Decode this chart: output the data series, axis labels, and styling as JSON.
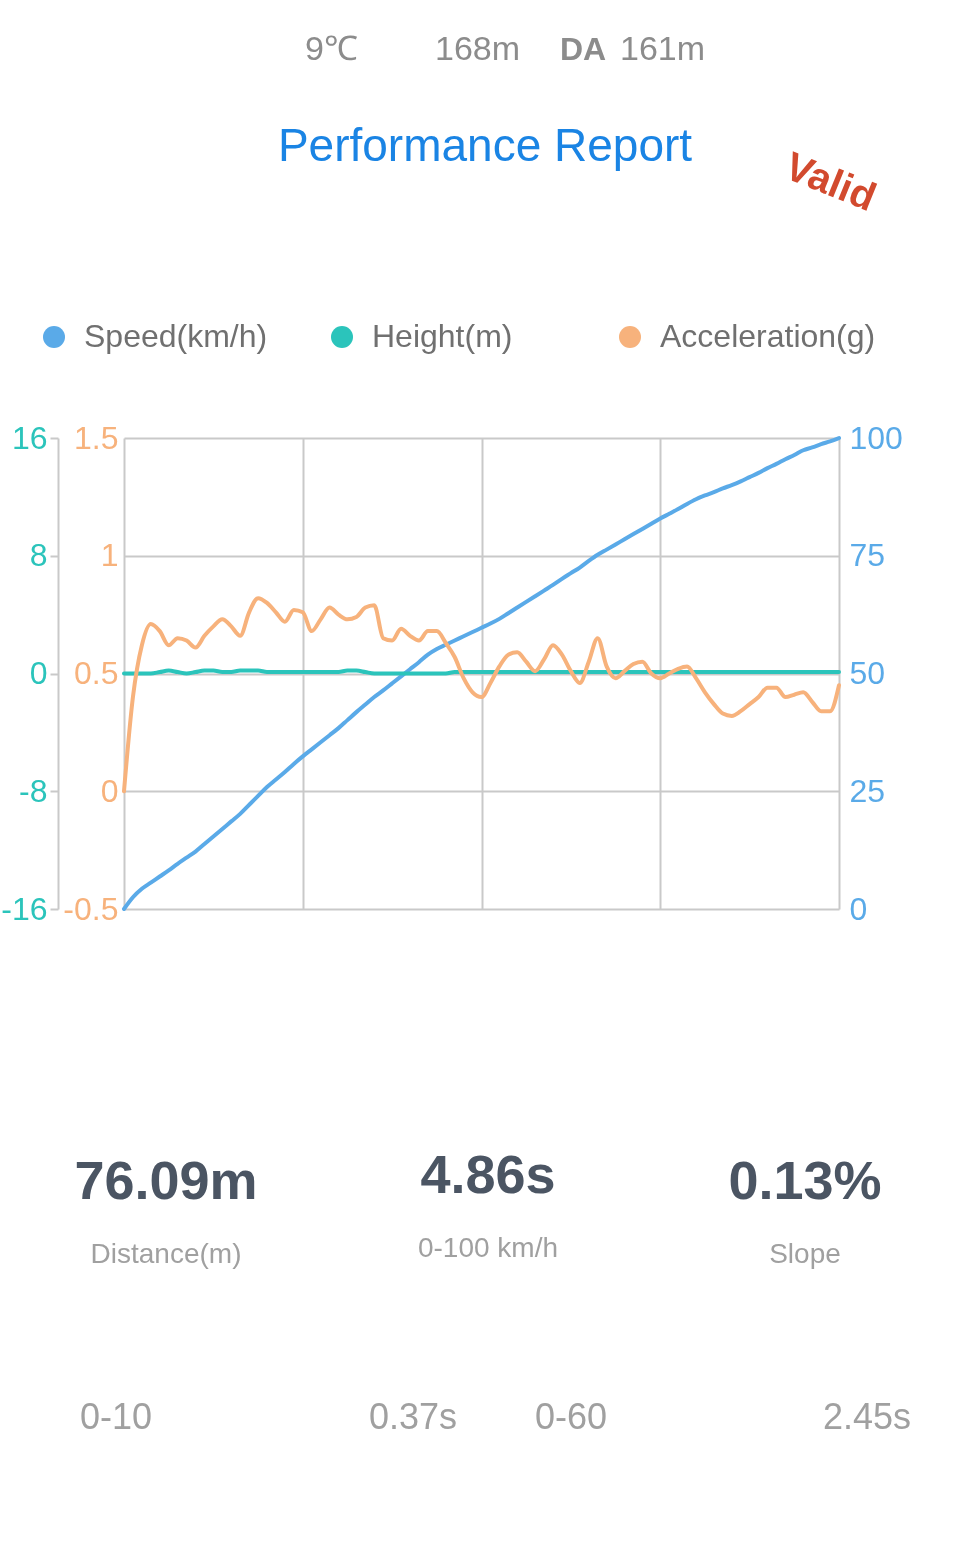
{
  "chart_data": {
    "type": "line",
    "title": "Performance Report",
    "annotations": [
      "9℃",
      "168m",
      "DA",
      "161m",
      "Valid",
      "76.09m",
      "Distance(m)",
      "4.86s",
      "0-100 km/h",
      "0.13%",
      "Slope",
      "0-10",
      "0.37s",
      "0-60",
      "2.45s"
    ],
    "categories": [
      null,
      null,
      null,
      null,
      null,
      null,
      null,
      null,
      null,
      null,
      null,
      null,
      null,
      null,
      null,
      null,
      null,
      null,
      null,
      null,
      null,
      null,
      null,
      null,
      null,
      null,
      null,
      null,
      null,
      null,
      null,
      null,
      null,
      null,
      null,
      null,
      null,
      null,
      null,
      null,
      null,
      null,
      null,
      null,
      null,
      null,
      null,
      null,
      null,
      null,
      null,
      null,
      null,
      null,
      null,
      null,
      null,
      null,
      null,
      null,
      null,
      null,
      null,
      null,
      null,
      null,
      null,
      null,
      null,
      null,
      null,
      null,
      null,
      null,
      null,
      null,
      null,
      null,
      null,
      null,
      null
    ],
    "series": [
      {
        "name": "Speed(km/h)",
        "color": "#5aaae8",
        "axis": "y2",
        "values": [
          0,
          2.5,
          4.3,
          5.6,
          6.9,
          8.2,
          9.6,
          10.9,
          12.2,
          13.8,
          15.4,
          17.0,
          18.6,
          20.2,
          22.1,
          24.0,
          25.9,
          27.5,
          29.1,
          30.8,
          32.4,
          33.9,
          35.4,
          36.9,
          38.4,
          40.1,
          41.8,
          43.4,
          45.0,
          46.4,
          47.9,
          49.4,
          50.9,
          52.4,
          54.0,
          55.2,
          56.1,
          57.0,
          57.9,
          58.8,
          59.7,
          60.6,
          61.6,
          62.8,
          64.0,
          65.2,
          66.4,
          67.6,
          68.8,
          70.1,
          71.3,
          72.5,
          73.9,
          75.2,
          76.3,
          77.4,
          78.5,
          79.6,
          80.7,
          81.8,
          82.9,
          83.9,
          84.9,
          86.0,
          87.0,
          87.8,
          88.5,
          89.3,
          90.0,
          90.8,
          91.7,
          92.6,
          93.6,
          94.5,
          95.5,
          96.4,
          97.4,
          98.0,
          98.7,
          99.3,
          100
        ]
      },
      {
        "name": "Height(m)",
        "color": "#2bc4bb",
        "axis": "y3",
        "values": [
          0,
          0,
          0,
          0,
          0.1,
          0.2,
          0.1,
          0,
          0.1,
          0.2,
          0.2,
          0.1,
          0.1,
          0.2,
          0.2,
          0.2,
          0.1,
          0.1,
          0.1,
          0.1,
          0.1,
          0.1,
          0.1,
          0.1,
          0.1,
          0.2,
          0.2,
          0.1,
          0,
          0,
          0,
          0,
          0,
          0,
          0,
          0,
          0,
          0.1,
          0.1,
          0.1,
          0.1,
          0.1,
          0.1,
          0.1,
          0.1,
          0.1,
          0.1,
          0.1,
          0.1,
          0.1,
          0.1,
          0.1,
          0.1,
          0.1,
          0.1,
          0.1,
          0.1,
          0.1,
          0.1,
          0.1,
          0.1,
          0.1,
          0.1,
          0.1,
          0.1,
          0.1,
          0.1,
          0.1,
          0.1,
          0.1,
          0.1,
          0.1,
          0.1,
          0.1,
          0.1,
          0.1,
          0.1,
          0.1,
          0.1,
          0.1,
          0.1
        ]
      },
      {
        "name": "Acceleration(g)",
        "color": "#f7b27c",
        "values": [
          0,
          0.4,
          0.62,
          0.71,
          0.68,
          0.62,
          0.65,
          0.64,
          0.61,
          0.66,
          0.7,
          0.73,
          0.7,
          0.66,
          0.76,
          0.82,
          0.8,
          0.76,
          0.72,
          0.77,
          0.76,
          0.68,
          0.73,
          0.78,
          0.75,
          0.73,
          0.74,
          0.78,
          0.79,
          0.65,
          0.64,
          0.69,
          0.66,
          0.64,
          0.68,
          0.68,
          0.63,
          0.57,
          0.48,
          0.42,
          0.4,
          0.46,
          0.53,
          0.58,
          0.59,
          0.55,
          0.51,
          0.56,
          0.62,
          0.58,
          0.51,
          0.46,
          0.55,
          0.65,
          0.53,
          0.48,
          0.51,
          0.54,
          0.55,
          0.5,
          0.48,
          0.5,
          0.52,
          0.53,
          0.48,
          0.42,
          0.37,
          0.33,
          0.32,
          0.34,
          0.37,
          0.4,
          0.44,
          0.44,
          0.4,
          0.41,
          0.42,
          0.38,
          0.34,
          0.34,
          0.45
        ]
      }
    ],
    "ylim": [
      -0.5,
      1.5
    ],
    "yticks": [
      -0.5,
      0,
      0.5,
      1,
      1.5
    ],
    "y2lim": [
      0,
      100
    ],
    "y2ticks": [
      0,
      25,
      50,
      75,
      100
    ],
    "y3lim": [
      -16,
      16
    ],
    "y3ticks": [
      -16,
      -8,
      0,
      8,
      16
    ],
    "grid": true,
    "legend": "top"
  }
}
